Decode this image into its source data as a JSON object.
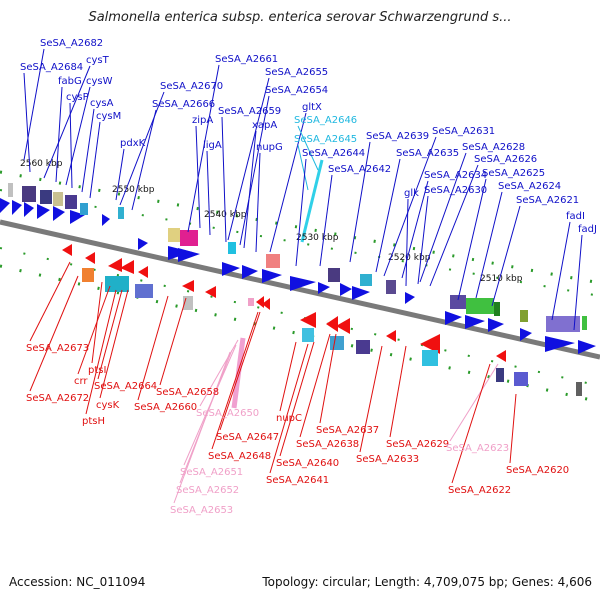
{
  "title": "Salmonella enterica subsp. enterica serovar Schwarzengrund s...",
  "footer": {
    "accession": "Accession: NC_011094",
    "summary": "Topology: circular; Length: 4,709,075 bp; Genes: 4,606"
  },
  "colors": {
    "forward_label": "#1010c8",
    "reverse_label": "#e01010",
    "rna_cyan": "#20b8e0",
    "pseudo_pink": "#f0a0c8",
    "backbone": "#808080"
  },
  "scale_ticks": [
    "2560 kbp",
    "2550 kbp",
    "2540 kbp",
    "2530 kbp",
    "2520 kbp",
    "2510 kbp"
  ],
  "top_labels": [
    {
      "text": "SeSA_A2682",
      "color": "blue"
    },
    {
      "text": "SeSA_A2684",
      "color": "blue"
    },
    {
      "text": "cysT",
      "color": "blue"
    },
    {
      "text": "fabG",
      "color": "blue"
    },
    {
      "text": "cysW",
      "color": "blue"
    },
    {
      "text": "cysP",
      "color": "blue"
    },
    {
      "text": "cysA",
      "color": "blue"
    },
    {
      "text": "cysM",
      "color": "blue"
    },
    {
      "text": "SeSA_A2670",
      "color": "blue"
    },
    {
      "text": "SeSA_A2666",
      "color": "blue"
    },
    {
      "text": "pdxK",
      "color": "blue"
    },
    {
      "text": "SeSA_A2661",
      "color": "blue"
    },
    {
      "text": "SeSA_A2655",
      "color": "blue"
    },
    {
      "text": "SeSA_A2654",
      "color": "blue"
    },
    {
      "text": "SeSA_A2659",
      "color": "blue"
    },
    {
      "text": "gltX",
      "color": "blue"
    },
    {
      "text": "zipA",
      "color": "blue"
    },
    {
      "text": "xapA",
      "color": "blue"
    },
    {
      "text": "SeSA_A2646",
      "color": "cyan"
    },
    {
      "text": "SeSA_A2645",
      "color": "cyan"
    },
    {
      "text": "ligA",
      "color": "blue"
    },
    {
      "text": "nupG",
      "color": "blue"
    },
    {
      "text": "SeSA_A2644",
      "color": "blue"
    },
    {
      "text": "SeSA_A2639",
      "color": "blue"
    },
    {
      "text": "SeSA_A2631",
      "color": "blue"
    },
    {
      "text": "SeSA_A2642",
      "color": "blue"
    },
    {
      "text": "SeSA_A2635",
      "color": "blue"
    },
    {
      "text": "SeSA_A2628",
      "color": "blue"
    },
    {
      "text": "SeSA_A2626",
      "color": "blue"
    },
    {
      "text": "SeSA_A2634",
      "color": "blue"
    },
    {
      "text": "SeSA_A2625",
      "color": "blue"
    },
    {
      "text": "glk",
      "color": "blue"
    },
    {
      "text": "SeSA_A2630",
      "color": "blue"
    },
    {
      "text": "SeSA_A2624",
      "color": "blue"
    },
    {
      "text": "SeSA_A2621",
      "color": "blue"
    },
    {
      "text": "fadI",
      "color": "blue"
    },
    {
      "text": "fadJ",
      "color": "blue"
    }
  ],
  "bottom_labels": [
    {
      "text": "SeSA_A2673",
      "color": "red"
    },
    {
      "text": "ptsI",
      "color": "red"
    },
    {
      "text": "crr",
      "color": "red"
    },
    {
      "text": "SeSA_A2664",
      "color": "red"
    },
    {
      "text": "SeSA_A2672",
      "color": "red"
    },
    {
      "text": "cysK",
      "color": "red"
    },
    {
      "text": "ptsH",
      "color": "red"
    },
    {
      "text": "SeSA_A2658",
      "color": "red"
    },
    {
      "text": "SeSA_A2660",
      "color": "red"
    },
    {
      "text": "SeSA_A2650",
      "color": "pink"
    },
    {
      "text": "nupC",
      "color": "red"
    },
    {
      "text": "SeSA_A2637",
      "color": "red"
    },
    {
      "text": "SeSA_A2647",
      "color": "red"
    },
    {
      "text": "SeSA_A2638",
      "color": "red"
    },
    {
      "text": "SeSA_A2629",
      "color": "red"
    },
    {
      "text": "SeSA_A2623",
      "color": "pink"
    },
    {
      "text": "SeSA_A2648",
      "color": "red"
    },
    {
      "text": "SeSA_A2633",
      "color": "red"
    },
    {
      "text": "SeSA_A2640",
      "color": "red"
    },
    {
      "text": "SeSA_A2651",
      "color": "pink"
    },
    {
      "text": "SeSA_A2620",
      "color": "red"
    },
    {
      "text": "SeSA_A2641",
      "color": "red"
    },
    {
      "text": "SeSA_A2652",
      "color": "pink"
    },
    {
      "text": "SeSA_A2622",
      "color": "red"
    },
    {
      "text": "SeSA_A2653",
      "color": "pink"
    }
  ]
}
